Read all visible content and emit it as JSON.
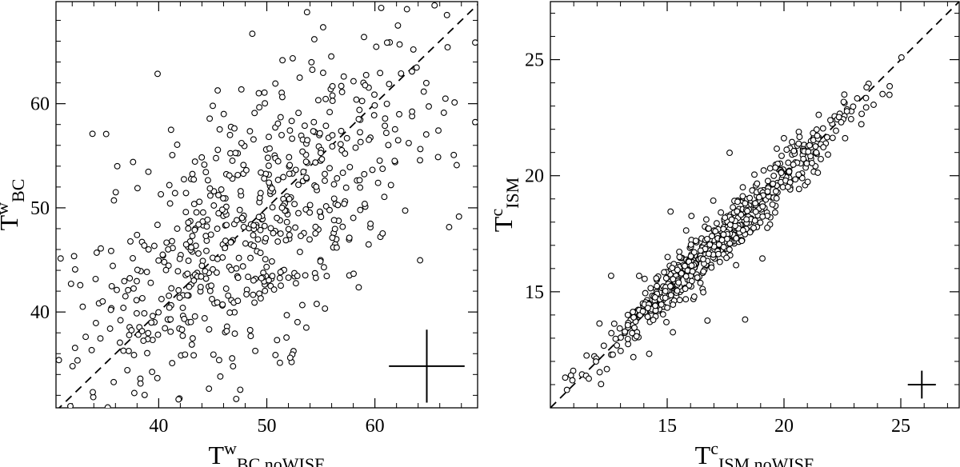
{
  "chart_data": [
    {
      "type": "scatter",
      "xlabel": {
        "main": "T",
        "sup": "w",
        "sub": "BC noWISE"
      },
      "ylabel": {
        "main": "T",
        "sup": "w",
        "sub": "BC"
      },
      "xlim": [
        30.5,
        69.5
      ],
      "ylim": [
        30.8,
        69.8
      ],
      "xticks": [
        40,
        50,
        60
      ],
      "yticks": [
        40,
        50,
        60
      ],
      "xtick_labels": [
        "40",
        "50",
        "60"
      ],
      "ytick_labels": [
        "40",
        "50",
        "60"
      ],
      "x_minor_step": 2,
      "y_minor_step": 2,
      "reference_line": {
        "style": "dashed",
        "slope": 1,
        "intercept": 0
      },
      "error_bar": {
        "x": 64.8,
        "y": 34.8,
        "x_half": 3.5,
        "y_half": 3.5
      },
      "point_generation": {
        "seed": 11,
        "count": 640,
        "center": 48.5,
        "spread_along": 7.5,
        "spread_across": 5.2
      },
      "grid": false,
      "legend": "none"
    },
    {
      "type": "scatter",
      "xlabel": {
        "main": "T",
        "sup": "c",
        "sub": "ISM noWISE"
      },
      "ylabel": {
        "main": "T",
        "sup": "c",
        "sub": "ISM"
      },
      "xlim": [
        10.0,
        27.5
      ],
      "ylim": [
        10.0,
        27.5
      ],
      "xticks": [
        15,
        20,
        25
      ],
      "yticks": [
        15,
        20,
        25
      ],
      "xtick_labels": [
        "15",
        "20",
        "25"
      ],
      "ytick_labels": [
        "15",
        "20",
        "25"
      ],
      "x_minor_step": 1,
      "y_minor_step": 1,
      "reference_line": {
        "style": "dashed",
        "slope": 1,
        "intercept": 0
      },
      "error_bar": {
        "x": 25.9,
        "y": 11.0,
        "x_half": 0.6,
        "y_half": 0.6
      },
      "point_generation": {
        "seed": 29,
        "count": 640,
        "center": 17.2,
        "spread_along": 2.7,
        "spread_across": 0.4
      },
      "grid": false,
      "legend": "none"
    }
  ]
}
